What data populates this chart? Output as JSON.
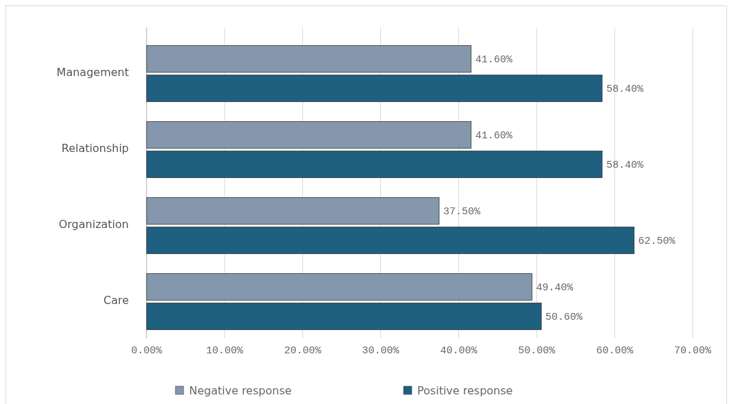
{
  "chart_data": {
    "type": "bar",
    "orientation": "horizontal",
    "categories": [
      "Management",
      "Relationship",
      "Organization",
      "Care"
    ],
    "series": [
      {
        "name": "Negative response",
        "color": "#8497ad",
        "values": [
          41.6,
          41.6,
          37.5,
          49.4
        ],
        "value_labels": [
          "41.60%",
          "41.60%",
          "37.50%",
          "49.40%"
        ]
      },
      {
        "name": "Positive response",
        "color": "#1f5f80",
        "values": [
          58.4,
          58.4,
          62.5,
          50.6
        ],
        "value_labels": [
          "58.40%",
          "58.40%",
          "62.50%",
          "50.60%"
        ]
      }
    ],
    "xlim": [
      0,
      70
    ],
    "xticks": [
      {
        "value": 0,
        "label": "0.00%"
      },
      {
        "value": 10,
        "label": "10.00%"
      },
      {
        "value": 20,
        "label": "20.00%"
      },
      {
        "value": 30,
        "label": "30.00%"
      },
      {
        "value": 40,
        "label": "40.00%"
      },
      {
        "value": 50,
        "label": "50.00%"
      },
      {
        "value": 60,
        "label": "60.00%"
      },
      {
        "value": 70,
        "label": "70.00%"
      }
    ],
    "grid": "x",
    "legend": "bottom"
  }
}
